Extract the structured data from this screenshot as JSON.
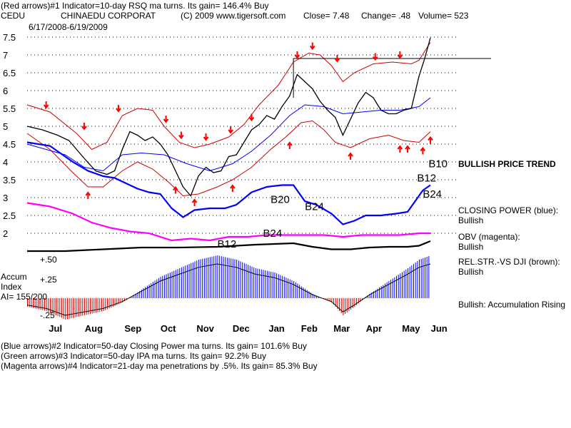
{
  "header": {
    "line1": "(Red arrows)#1 Indicator=10-day RSQ ma turns. Its gain= 146.4% Buy",
    "symbol": "CEDU",
    "company": "CHINAEDU CORPORAT",
    "copyright": "(C) 2009 www.tigersoft.com",
    "close": "Close=  7.48",
    "change": "Change= .48",
    "volume": "Volume= 523",
    "date_range": "6/17/2008-6/19/2009"
  },
  "footer": {
    "line2": "(Blue arrows)#2 Indicator=50-day Closing Power ma turns. Its gain= 101.6% Buy",
    "line3": "(Green arrows)#3 Indicator=50-day IPA ma turns. Its gain= 92.2% Buy",
    "line4": "(Magenta arrows)#4 Indicator=21-day ma penetrations by .5%. Its gain= 85.3% Buy"
  },
  "side": {
    "bullish_trend": "BULLISH PRICE TREND",
    "closing_power": "CLOSING POWER (blue):",
    "closing_power_val": "Bullish",
    "obv": "OBV (magenta):",
    "obv_val": "Bullish",
    "relstr": "REL.STR.-VS DJI (brown):",
    "relstr_val": "Bullish",
    "accum": "Bullish: Accumulation Rising"
  },
  "accum_labels": {
    "title1": "Accum",
    "title2": "Index",
    "ai": "AI= 155/200",
    "tick_50": "+.50",
    "tick_25": "+.25",
    "tick_m25": "-.25"
  },
  "colors": {
    "price": "#000000",
    "bands": "#cc0000",
    "ma": "#0000ff",
    "closing_power": "#0000ff",
    "obv": "#ff00ff",
    "relstr": "#000000",
    "accum_pos": "#0000ff",
    "accum_neg": "#cc0000",
    "red_arrow": "#ff0000",
    "grid": "#000000"
  },
  "chart_data": {
    "type": "line",
    "title": "CEDU  CHINAEDU CORPORAT",
    "date_range": "6/17/2008-6/19/2009",
    "y_ticks": [
      "7.5",
      "7",
      "6.5",
      "6",
      "5.5",
      "5",
      "4.5",
      "4",
      "3.5",
      "3",
      "2.5",
      "2"
    ],
    "ylim": [
      2,
      7.5
    ],
    "x_ticks": [
      "Jul",
      "Aug",
      "Sep",
      "Oct",
      "Nov",
      "Dec",
      "Jan",
      "Feb",
      "Mar",
      "Apr",
      "May",
      "Jun"
    ],
    "resistance_line": 6.9,
    "price": [
      [
        0,
        5.0
      ],
      [
        8,
        4.9
      ],
      [
        16,
        4.75
      ],
      [
        22,
        4.6
      ],
      [
        26,
        4.35
      ],
      [
        30,
        4.1
      ],
      [
        36,
        3.75
      ],
      [
        42,
        3.65
      ],
      [
        46,
        3.75
      ],
      [
        50,
        4.35
      ],
      [
        54,
        4.85
      ],
      [
        58,
        4.75
      ],
      [
        62,
        4.6
      ],
      [
        66,
        4.7
      ],
      [
        70,
        4.5
      ],
      [
        74,
        4.2
      ],
      [
        78,
        3.75
      ],
      [
        82,
        3.3
      ],
      [
        86,
        3.05
      ],
      [
        90,
        3.6
      ],
      [
        94,
        3.85
      ],
      [
        98,
        3.7
      ],
      [
        102,
        3.75
      ],
      [
        106,
        4.15
      ],
      [
        110,
        4.2
      ],
      [
        114,
        4.55
      ],
      [
        118,
        4.9
      ],
      [
        122,
        5.05
      ],
      [
        126,
        5.3
      ],
      [
        130,
        5.2
      ],
      [
        134,
        5.55
      ],
      [
        138,
        5.85
      ],
      [
        142,
        6.45
      ],
      [
        146,
        6.25
      ],
      [
        150,
        6.05
      ],
      [
        154,
        5.7
      ],
      [
        158,
        5.45
      ],
      [
        162,
        5.25
      ],
      [
        166,
        4.75
      ],
      [
        170,
        5.2
      ],
      [
        174,
        5.65
      ],
      [
        178,
        5.95
      ],
      [
        182,
        5.8
      ],
      [
        186,
        5.45
      ],
      [
        190,
        5.35
      ],
      [
        194,
        5.35
      ],
      [
        198,
        5.45
      ],
      [
        202,
        5.5
      ],
      [
        206,
        6.4
      ],
      [
        209,
        6.9
      ],
      [
        212,
        7.48
      ]
    ],
    "ma": [
      [
        0,
        4.5
      ],
      [
        20,
        4.2
      ],
      [
        30,
        3.85
      ],
      [
        40,
        3.75
      ],
      [
        50,
        4.2
      ],
      [
        60,
        4.25
      ],
      [
        72,
        4.2
      ],
      [
        84,
        3.95
      ],
      [
        96,
        3.75
      ],
      [
        108,
        3.95
      ],
      [
        118,
        4.3
      ],
      [
        128,
        4.75
      ],
      [
        138,
        5.3
      ],
      [
        146,
        5.6
      ],
      [
        156,
        5.55
      ],
      [
        166,
        5.35
      ],
      [
        176,
        5.4
      ],
      [
        186,
        5.45
      ],
      [
        196,
        5.45
      ],
      [
        206,
        5.55
      ],
      [
        212,
        5.8
      ]
    ],
    "upper_band": [
      [
        0,
        5.6
      ],
      [
        12,
        5.4
      ],
      [
        26,
        4.8
      ],
      [
        34,
        4.35
      ],
      [
        42,
        4.55
      ],
      [
        50,
        5.3
      ],
      [
        58,
        5.5
      ],
      [
        66,
        5.45
      ],
      [
        72,
        5.0
      ],
      [
        80,
        4.55
      ],
      [
        88,
        4.4
      ],
      [
        96,
        4.5
      ],
      [
        106,
        4.7
      ],
      [
        114,
        5.05
      ],
      [
        122,
        5.6
      ],
      [
        132,
        6.15
      ],
      [
        140,
        6.8
      ],
      [
        148,
        7.05
      ],
      [
        154,
        7.0
      ],
      [
        160,
        6.7
      ],
      [
        166,
        6.25
      ],
      [
        172,
        6.5
      ],
      [
        182,
        6.75
      ],
      [
        192,
        6.8
      ],
      [
        202,
        6.75
      ],
      [
        206,
        6.85
      ],
      [
        212,
        7.35
      ]
    ],
    "lower_band": [
      [
        0,
        4.8
      ],
      [
        12,
        4.35
      ],
      [
        24,
        3.7
      ],
      [
        32,
        3.3
      ],
      [
        40,
        3.3
      ],
      [
        50,
        3.75
      ],
      [
        58,
        4.0
      ],
      [
        66,
        3.8
      ],
      [
        74,
        3.45
      ],
      [
        82,
        3.05
      ],
      [
        90,
        3.1
      ],
      [
        100,
        3.3
      ],
      [
        108,
        3.5
      ],
      [
        118,
        3.85
      ],
      [
        128,
        4.35
      ],
      [
        136,
        4.7
      ],
      [
        144,
        5.1
      ],
      [
        150,
        5.15
      ],
      [
        156,
        4.9
      ],
      [
        162,
        4.55
      ],
      [
        170,
        4.4
      ],
      [
        180,
        4.65
      ],
      [
        190,
        4.75
      ],
      [
        198,
        4.6
      ],
      [
        206,
        4.55
      ],
      [
        212,
        4.85
      ]
    ],
    "closing_power": [
      [
        0,
        4.55
      ],
      [
        12,
        4.45
      ],
      [
        24,
        4.0
      ],
      [
        32,
        3.75
      ],
      [
        40,
        3.6
      ],
      [
        46,
        3.55
      ],
      [
        52,
        3.4
      ],
      [
        58,
        3.25
      ],
      [
        64,
        3.15
      ],
      [
        70,
        3.1
      ],
      [
        76,
        2.7
      ],
      [
        82,
        2.45
      ],
      [
        88,
        2.65
      ],
      [
        96,
        2.7
      ],
      [
        104,
        2.7
      ],
      [
        110,
        2.8
      ],
      [
        118,
        3.15
      ],
      [
        126,
        3.3
      ],
      [
        134,
        3.35
      ],
      [
        140,
        3.35
      ],
      [
        146,
        2.9
      ],
      [
        152,
        2.8
      ],
      [
        160,
        2.55
      ],
      [
        166,
        2.25
      ],
      [
        172,
        2.35
      ],
      [
        178,
        2.5
      ],
      [
        186,
        2.5
      ],
      [
        194,
        2.55
      ],
      [
        200,
        2.6
      ],
      [
        204,
        2.9
      ],
      [
        208,
        3.2
      ],
      [
        212,
        3.35
      ]
    ],
    "obv": [
      [
        0,
        2.85
      ],
      [
        12,
        2.75
      ],
      [
        24,
        2.55
      ],
      [
        34,
        2.3
      ],
      [
        44,
        2.15
      ],
      [
        54,
        2.05
      ],
      [
        64,
        2.0
      ],
      [
        76,
        1.8
      ],
      [
        86,
        1.85
      ],
      [
        96,
        1.8
      ],
      [
        106,
        1.9
      ],
      [
        116,
        1.9
      ],
      [
        126,
        1.95
      ],
      [
        136,
        1.95
      ],
      [
        146,
        1.95
      ],
      [
        156,
        1.95
      ],
      [
        166,
        1.9
      ],
      [
        176,
        1.95
      ],
      [
        186,
        1.95
      ],
      [
        196,
        1.95
      ],
      [
        206,
        2.0
      ],
      [
        212,
        2.0
      ]
    ],
    "relstr": [
      [
        0,
        1.5
      ],
      [
        20,
        1.5
      ],
      [
        40,
        1.55
      ],
      [
        60,
        1.6
      ],
      [
        80,
        1.6
      ],
      [
        100,
        1.62
      ],
      [
        120,
        1.68
      ],
      [
        140,
        1.72
      ],
      [
        150,
        1.62
      ],
      [
        160,
        1.55
      ],
      [
        170,
        1.55
      ],
      [
        180,
        1.6
      ],
      [
        190,
        1.62
      ],
      [
        200,
        1.62
      ],
      [
        206,
        1.65
      ],
      [
        212,
        1.78
      ]
    ],
    "accumulation": [
      [
        0,
        -0.1
      ],
      [
        10,
        -0.15
      ],
      [
        20,
        -0.25
      ],
      [
        30,
        -0.2
      ],
      [
        40,
        -0.15
      ],
      [
        50,
        -0.05
      ],
      [
        60,
        0.1
      ],
      [
        70,
        0.25
      ],
      [
        80,
        0.35
      ],
      [
        90,
        0.45
      ],
      [
        100,
        0.5
      ],
      [
        110,
        0.45
      ],
      [
        120,
        0.35
      ],
      [
        130,
        0.3
      ],
      [
        140,
        0.2
      ],
      [
        150,
        0.05
      ],
      [
        160,
        -0.05
      ],
      [
        166,
        -0.2
      ],
      [
        172,
        -0.1
      ],
      [
        180,
        0.05
      ],
      [
        190,
        0.2
      ],
      [
        200,
        0.35
      ],
      [
        206,
        0.45
      ],
      [
        212,
        0.5
      ]
    ],
    "signal_labels": [
      {
        "text": "B10",
        "x": 211,
        "y": 3.85
      },
      {
        "text": "B12",
        "x": 205,
        "y": 3.45
      },
      {
        "text": "B24",
        "x": 208,
        "y": 3.0
      },
      {
        "text": "B20",
        "x": 128,
        "y": 2.85
      },
      {
        "text": "B24",
        "x": 146,
        "y": 2.65
      },
      {
        "text": "B24",
        "x": 124,
        "y": 1.9
      },
      {
        "text": "B12",
        "x": 100,
        "y": 1.6
      }
    ],
    "red_arrows_down": [
      10,
      30,
      48,
      73,
      81,
      94,
      107,
      118,
      142,
      150,
      163,
      183,
      196
    ],
    "red_arrows_up": [
      32,
      78,
      88,
      108,
      138,
      170,
      196,
      200,
      208,
      212
    ]
  }
}
